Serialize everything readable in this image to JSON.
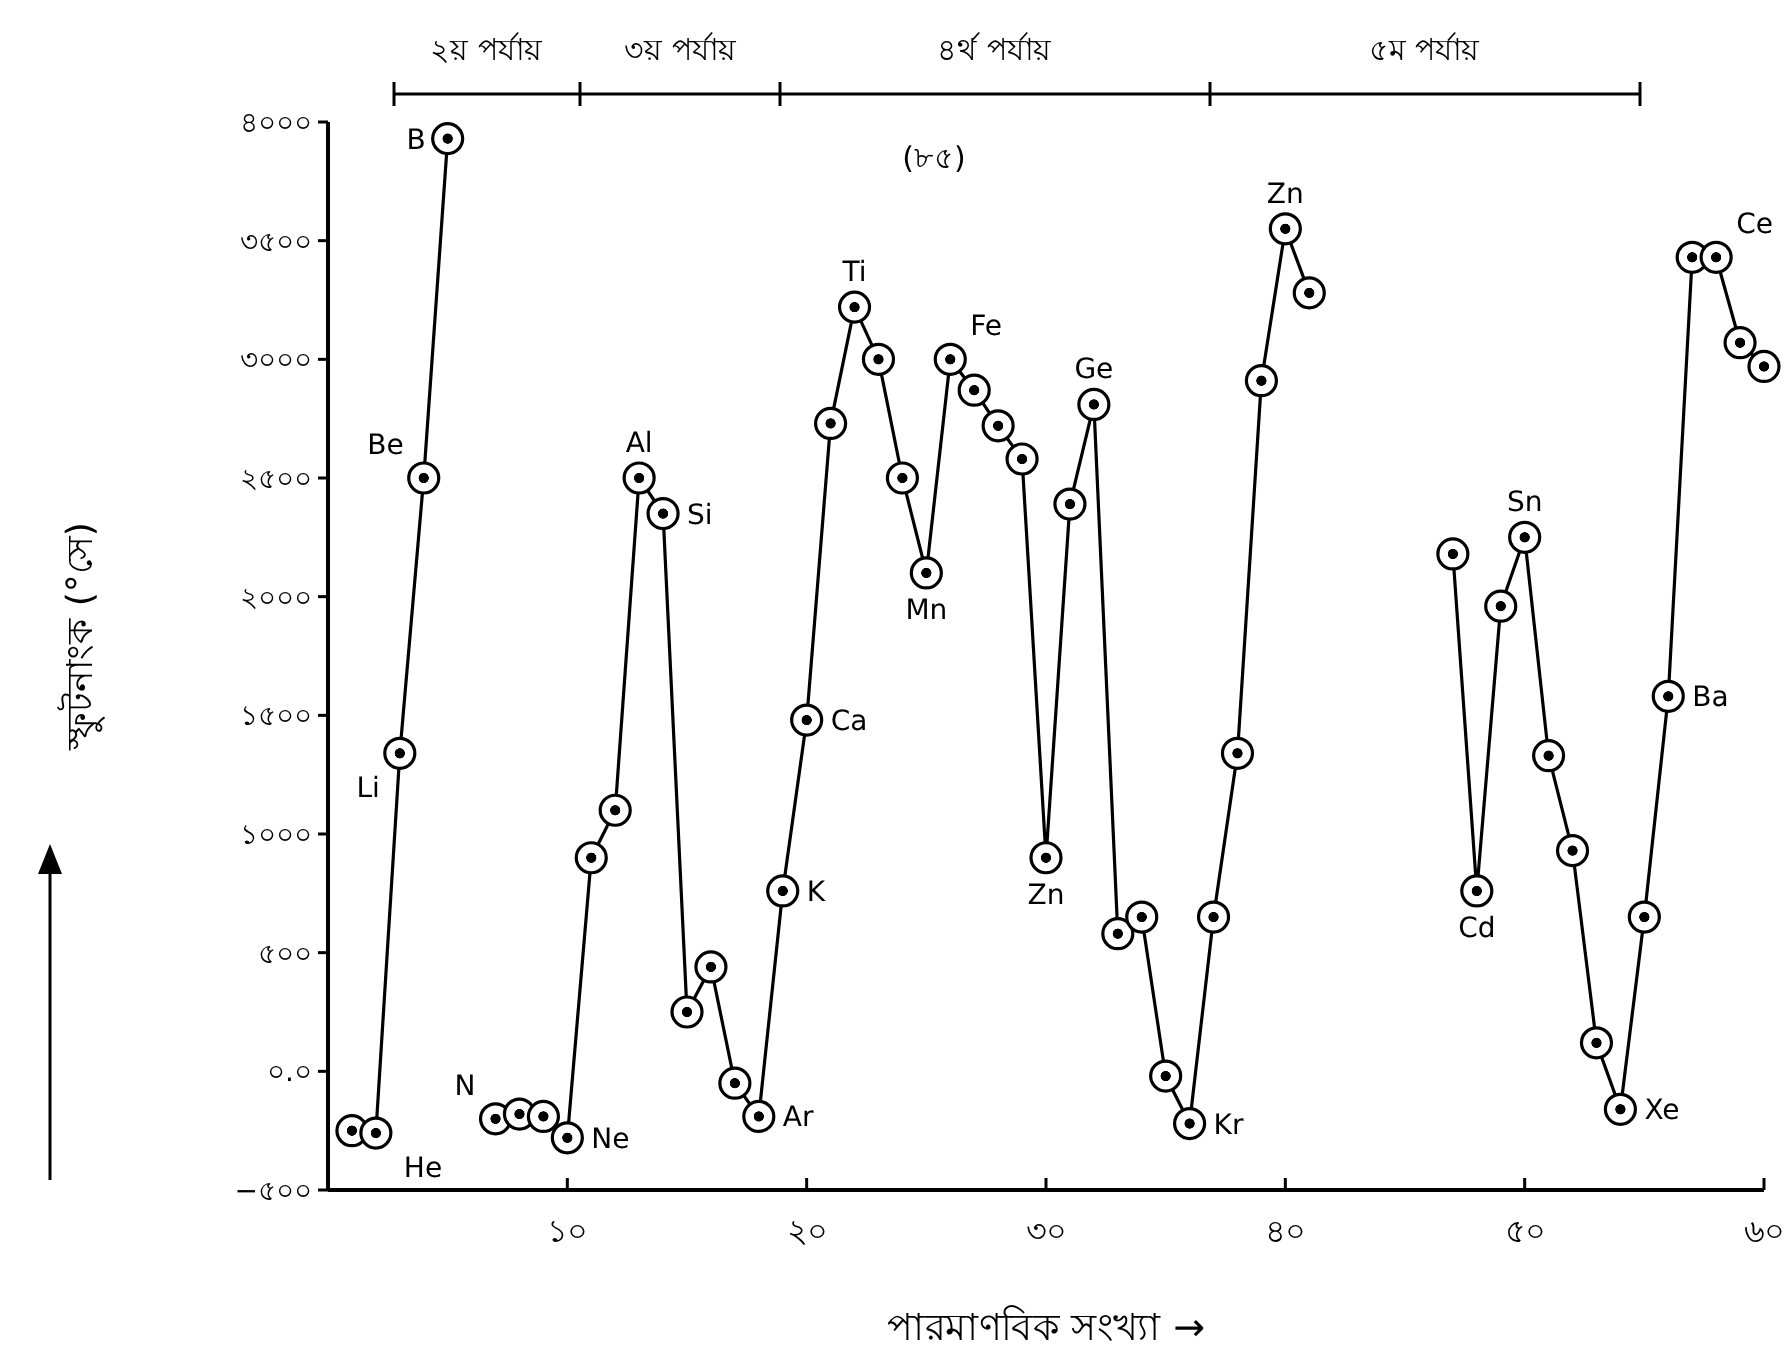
{
  "chart_data": {
    "type": "line",
    "xlabel": "পারমাণবিক সংখ্যা →",
    "ylabel": "স্ফুটনাংক (°সে)",
    "x": [
      1,
      2,
      3,
      4,
      5,
      6,
      7,
      8,
      9,
      10,
      11,
      12,
      13,
      14,
      15,
      16,
      17,
      18,
      19,
      20,
      21,
      22,
      23,
      24,
      25,
      26,
      27,
      28,
      29,
      30,
      31,
      32,
      33,
      34,
      35,
      36,
      37,
      38,
      39,
      40,
      41,
      42,
      43,
      44,
      45,
      46,
      47,
      48,
      49,
      50,
      51,
      52,
      53,
      54,
      55,
      56,
      57,
      58,
      59,
      60
    ],
    "series": [
      {
        "color": "#000000",
        "values": [
          -250,
          -260,
          1340,
          2500,
          3930,
          null,
          -200,
          -180,
          -190,
          -280,
          900,
          1100,
          2500,
          2350,
          250,
          440,
          -50,
          -190,
          760,
          1480,
          2730,
          3220,
          3000,
          2500,
          2100,
          3000,
          2870,
          2720,
          2580,
          900,
          2390,
          2810,
          580,
          650,
          -20,
          -220,
          650,
          1340,
          2910,
          3550,
          3280,
          null,
          null,
          null,
          null,
          null,
          2180,
          760,
          1960,
          2250,
          1330,
          930,
          120,
          -160,
          650,
          1580,
          3430,
          3430,
          3070,
          2970
        ]
      }
    ],
    "marker": "circle",
    "line_style": "solid",
    "xlim": [
      0,
      60
    ],
    "xticks": [
      {
        "value": 10,
        "label": "১০"
      },
      {
        "value": 20,
        "label": "২০"
      },
      {
        "value": 30,
        "label": "৩০"
      },
      {
        "value": 40,
        "label": "৪০"
      },
      {
        "value": 50,
        "label": "৫০"
      },
      {
        "value": 60,
        "label": "৬০"
      }
    ],
    "ylim": [
      -500,
      4000
    ],
    "yticks": [
      {
        "value": -500,
        "label": "−৫০০"
      },
      {
        "value": 0,
        "label": "০.০"
      },
      {
        "value": 500,
        "label": "৫০০"
      },
      {
        "value": 1000,
        "label": "১০০০"
      },
      {
        "value": 1500,
        "label": "১৫০০"
      },
      {
        "value": 2000,
        "label": "২০০০"
      },
      {
        "value": 2500,
        "label": "২৫০০"
      },
      {
        "value": 3000,
        "label": "৩০০০"
      },
      {
        "value": 3500,
        "label": "৩৫০০"
      },
      {
        "value": 4000,
        "label": "৪০০০"
      }
    ],
    "annotations": [
      "২য় পর্যায়",
      "৩য় পর্যায়",
      "৪র্থ পর্যায়",
      "৫ম পর্যায়",
      {
        "text": "He",
        "x": 2,
        "y": -260
      },
      {
        "text": "Li",
        "x": 3,
        "y": 1340
      },
      {
        "text": "Be",
        "x": 4,
        "y": 2500
      },
      {
        "text": "B",
        "x": 5,
        "y": 3930
      },
      {
        "text": "N",
        "x": 7,
        "y": -200
      },
      {
        "text": "Ne",
        "x": 10,
        "y": -280
      },
      {
        "text": "Al",
        "x": 13,
        "y": 2500
      },
      {
        "text": "Si",
        "x": 14,
        "y": 2350
      },
      {
        "text": "Ar",
        "x": 18,
        "y": -190
      },
      {
        "text": "K",
        "x": 19,
        "y": 760
      },
      {
        "text": "Ca",
        "x": 20,
        "y": 1480
      },
      {
        "text": "Ti",
        "x": 22,
        "y": 3220
      },
      {
        "text": "Mn",
        "x": 25,
        "y": 2100
      },
      {
        "text": "Fe",
        "x": 26,
        "y": 3000
      },
      {
        "text": "Zn",
        "x": 30,
        "y": 900
      },
      {
        "text": "Ge",
        "x": 32,
        "y": 2810
      },
      {
        "text": "Kr",
        "x": 36,
        "y": -220
      },
      {
        "text": "Zn",
        "x": 40,
        "y": 3550
      },
      {
        "text": "Cd",
        "x": 48,
        "y": 760
      },
      {
        "text": "Sn",
        "x": 50,
        "y": 2250
      },
      {
        "text": "Xe",
        "x": 54,
        "y": -160
      },
      {
        "text": "Ba",
        "x": 56,
        "y": 1580
      },
      {
        "text": "Ce",
        "x": 58,
        "y": 3430
      },
      "(৮৫)"
    ]
  }
}
